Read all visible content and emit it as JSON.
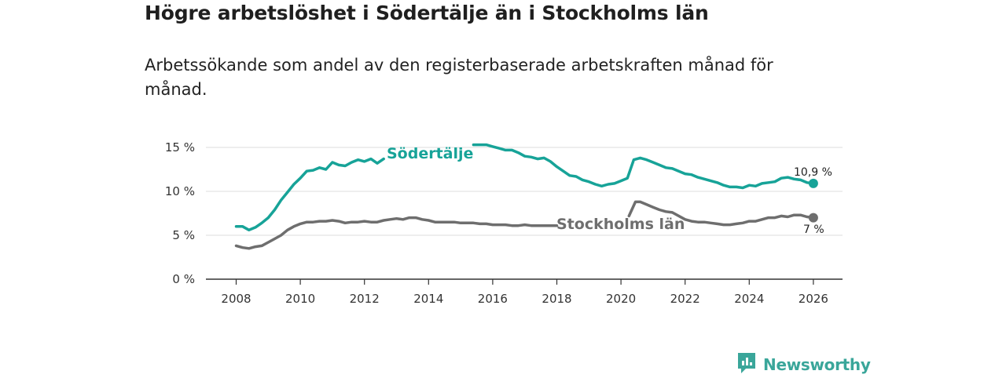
{
  "title": "Högre arbetslöshet i Södertälje än i Stockholms län",
  "subtitle": "Arbetssökande som andel av den registerbaserade arbetskraften månad för månad.",
  "brand": {
    "name": "Newsworthy",
    "icon": "newsworthy-logo-icon"
  },
  "colors": {
    "sodertalje": "#17a398",
    "stockholm": "#6e6e6e",
    "grid": "#dddddd",
    "axis": "#333333"
  },
  "chart_data": {
    "type": "line",
    "title": "Högre arbetslöshet i Södertälje än i Stockholms län",
    "xlabel": "",
    "ylabel": "",
    "xlim": [
      2007.5,
      2026.9
    ],
    "ylim": [
      0,
      15
    ],
    "x_ticks": [
      2008,
      2010,
      2012,
      2014,
      2016,
      2018,
      2020,
      2022,
      2024,
      2026
    ],
    "x_tick_labels": [
      "2008",
      "2010",
      "2012",
      "2014",
      "2016",
      "2018",
      "2020",
      "2022",
      "2024",
      "2026"
    ],
    "y_ticks": [
      0,
      5,
      10,
      15
    ],
    "y_tick_labels": [
      "0 %",
      "5 %",
      "10 %",
      "15 %"
    ],
    "grid": true,
    "series": [
      {
        "name": "Södertälje",
        "color": "#17a398",
        "end_label": "10,9 %",
        "points": [
          [
            2008.0,
            6.0
          ],
          [
            2008.2,
            6.0
          ],
          [
            2008.4,
            5.6
          ],
          [
            2008.6,
            5.9
          ],
          [
            2008.8,
            6.4
          ],
          [
            2009.0,
            7.0
          ],
          [
            2009.2,
            7.9
          ],
          [
            2009.4,
            9.0
          ],
          [
            2009.6,
            9.9
          ],
          [
            2009.8,
            10.8
          ],
          [
            2010.0,
            11.5
          ],
          [
            2010.2,
            12.3
          ],
          [
            2010.4,
            12.4
          ],
          [
            2010.6,
            12.7
          ],
          [
            2010.8,
            12.5
          ],
          [
            2011.0,
            13.3
          ],
          [
            2011.2,
            13.0
          ],
          [
            2011.4,
            12.9
          ],
          [
            2011.6,
            13.3
          ],
          [
            2011.8,
            13.6
          ],
          [
            2012.0,
            13.4
          ],
          [
            2012.2,
            13.7
          ],
          [
            2012.4,
            13.2
          ],
          [
            2012.6,
            13.7
          ],
          [
            2015.4,
            15.3
          ],
          [
            2015.8,
            15.3
          ],
          [
            2016.0,
            15.1
          ],
          [
            2016.2,
            14.9
          ],
          [
            2016.4,
            14.7
          ],
          [
            2016.6,
            14.7
          ],
          [
            2016.8,
            14.4
          ],
          [
            2017.0,
            14.0
          ],
          [
            2017.2,
            13.9
          ],
          [
            2017.4,
            13.7
          ],
          [
            2017.6,
            13.8
          ],
          [
            2017.8,
            13.4
          ],
          [
            2018.0,
            12.8
          ],
          [
            2018.2,
            12.3
          ],
          [
            2018.4,
            11.8
          ],
          [
            2018.6,
            11.7
          ],
          [
            2018.8,
            11.3
          ],
          [
            2019.0,
            11.1
          ],
          [
            2019.2,
            10.8
          ],
          [
            2019.4,
            10.6
          ],
          [
            2019.6,
            10.8
          ],
          [
            2019.8,
            10.9
          ],
          [
            2020.0,
            11.2
          ],
          [
            2020.2,
            11.5
          ],
          [
            2020.4,
            13.6
          ],
          [
            2020.6,
            13.8
          ],
          [
            2020.8,
            13.6
          ],
          [
            2021.0,
            13.3
          ],
          [
            2021.2,
            13.0
          ],
          [
            2021.4,
            12.7
          ],
          [
            2021.6,
            12.6
          ],
          [
            2021.8,
            12.3
          ],
          [
            2022.0,
            12.0
          ],
          [
            2022.2,
            11.9
          ],
          [
            2022.4,
            11.6
          ],
          [
            2022.6,
            11.4
          ],
          [
            2022.8,
            11.2
          ],
          [
            2023.0,
            11.0
          ],
          [
            2023.2,
            10.7
          ],
          [
            2023.4,
            10.5
          ],
          [
            2023.6,
            10.5
          ],
          [
            2023.8,
            10.4
          ],
          [
            2024.0,
            10.7
          ],
          [
            2024.2,
            10.6
          ],
          [
            2024.4,
            10.9
          ],
          [
            2024.6,
            11.0
          ],
          [
            2024.8,
            11.1
          ],
          [
            2025.0,
            11.5
          ],
          [
            2025.2,
            11.6
          ],
          [
            2025.4,
            11.4
          ],
          [
            2025.6,
            11.3
          ],
          [
            2025.8,
            11.0
          ],
          [
            2026.0,
            10.9
          ]
        ]
      },
      {
        "name": "Stockholms län",
        "color": "#6e6e6e",
        "end_label": "7 %",
        "points": [
          [
            2008.0,
            3.8
          ],
          [
            2008.2,
            3.6
          ],
          [
            2008.4,
            3.5
          ],
          [
            2008.6,
            3.7
          ],
          [
            2008.8,
            3.8
          ],
          [
            2009.0,
            4.2
          ],
          [
            2009.2,
            4.6
          ],
          [
            2009.4,
            5.0
          ],
          [
            2009.6,
            5.6
          ],
          [
            2009.8,
            6.0
          ],
          [
            2010.0,
            6.3
          ],
          [
            2010.2,
            6.5
          ],
          [
            2010.4,
            6.5
          ],
          [
            2010.6,
            6.6
          ],
          [
            2010.8,
            6.6
          ],
          [
            2011.0,
            6.7
          ],
          [
            2011.2,
            6.6
          ],
          [
            2011.4,
            6.4
          ],
          [
            2011.6,
            6.5
          ],
          [
            2011.8,
            6.5
          ],
          [
            2012.0,
            6.6
          ],
          [
            2012.2,
            6.5
          ],
          [
            2012.4,
            6.5
          ],
          [
            2012.6,
            6.7
          ],
          [
            2012.8,
            6.8
          ],
          [
            2013.0,
            6.9
          ],
          [
            2013.2,
            6.8
          ],
          [
            2013.4,
            7.0
          ],
          [
            2013.6,
            7.0
          ],
          [
            2013.8,
            6.8
          ],
          [
            2014.0,
            6.7
          ],
          [
            2014.2,
            6.5
          ],
          [
            2014.4,
            6.5
          ],
          [
            2014.6,
            6.5
          ],
          [
            2014.8,
            6.5
          ],
          [
            2015.0,
            6.4
          ],
          [
            2015.2,
            6.4
          ],
          [
            2015.4,
            6.4
          ],
          [
            2015.6,
            6.3
          ],
          [
            2015.8,
            6.3
          ],
          [
            2016.0,
            6.2
          ],
          [
            2016.2,
            6.2
          ],
          [
            2016.4,
            6.2
          ],
          [
            2016.6,
            6.1
          ],
          [
            2016.8,
            6.1
          ],
          [
            2017.0,
            6.2
          ],
          [
            2017.2,
            6.1
          ],
          [
            2017.4,
            6.1
          ],
          [
            2017.6,
            6.1
          ],
          [
            2017.8,
            6.1
          ],
          [
            2018.0,
            6.1
          ],
          [
            2020.25,
            7.2
          ],
          [
            2020.45,
            8.8
          ],
          [
            2020.6,
            8.8
          ],
          [
            2020.8,
            8.5
          ],
          [
            2021.0,
            8.2
          ],
          [
            2021.2,
            7.9
          ],
          [
            2021.4,
            7.7
          ],
          [
            2021.6,
            7.6
          ],
          [
            2022.0,
            6.8
          ],
          [
            2022.2,
            6.6
          ],
          [
            2022.4,
            6.5
          ],
          [
            2022.6,
            6.5
          ],
          [
            2022.8,
            6.4
          ],
          [
            2023.0,
            6.3
          ],
          [
            2023.2,
            6.2
          ],
          [
            2023.4,
            6.2
          ],
          [
            2023.6,
            6.3
          ],
          [
            2023.8,
            6.4
          ],
          [
            2024.0,
            6.6
          ],
          [
            2024.2,
            6.6
          ],
          [
            2024.4,
            6.8
          ],
          [
            2024.6,
            7.0
          ],
          [
            2024.8,
            7.0
          ],
          [
            2025.0,
            7.2
          ],
          [
            2025.2,
            7.1
          ],
          [
            2025.4,
            7.3
          ],
          [
            2025.6,
            7.3
          ],
          [
            2025.8,
            7.1
          ],
          [
            2026.0,
            7.0
          ]
        ]
      }
    ]
  }
}
